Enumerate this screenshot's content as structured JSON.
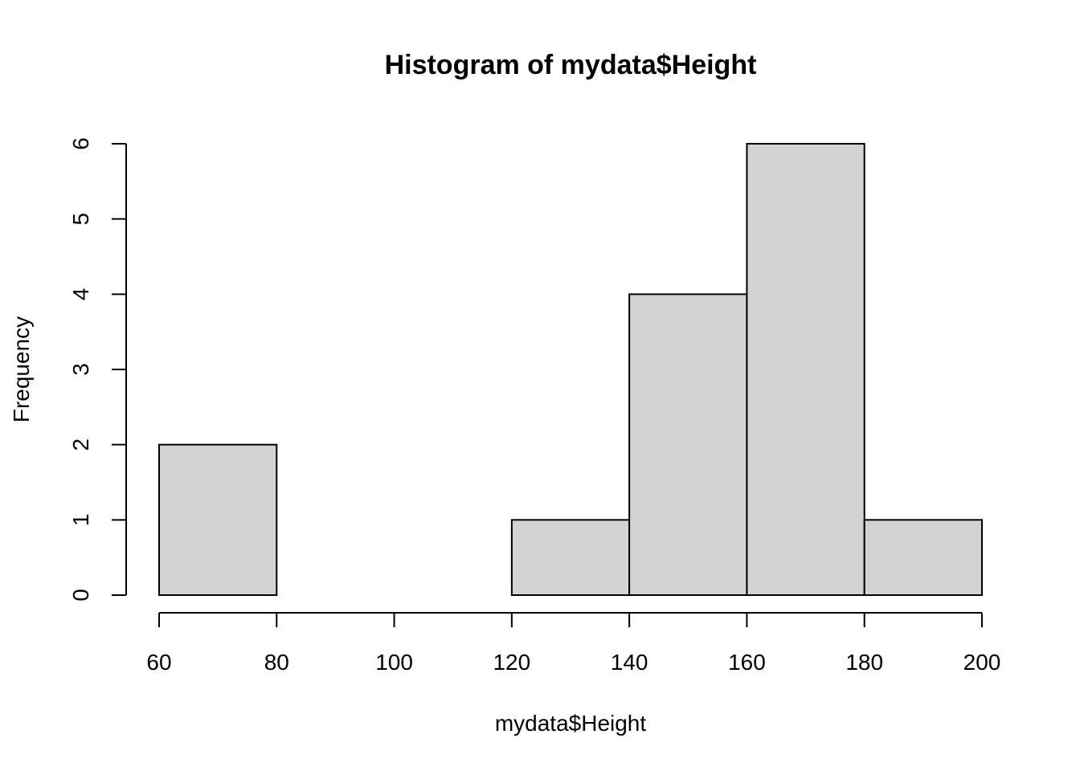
{
  "chart_data": {
    "type": "bar",
    "title": "Histogram of mydata$Height",
    "xlabel": "mydata$Height",
    "ylabel": "Frequency",
    "bins": [
      {
        "start": 60,
        "end": 80,
        "count": 2
      },
      {
        "start": 80,
        "end": 100,
        "count": 0
      },
      {
        "start": 100,
        "end": 120,
        "count": 0
      },
      {
        "start": 120,
        "end": 140,
        "count": 1
      },
      {
        "start": 140,
        "end": 160,
        "count": 4
      },
      {
        "start": 160,
        "end": 180,
        "count": 6
      },
      {
        "start": 180,
        "end": 200,
        "count": 1
      }
    ],
    "xlim": [
      60,
      200
    ],
    "ylim": [
      0,
      6
    ],
    "x_ticks": [
      "60",
      "80",
      "100",
      "120",
      "140",
      "160",
      "180",
      "200"
    ],
    "y_ticks": [
      "0",
      "1",
      "2",
      "3",
      "4",
      "5",
      "6"
    ],
    "bar_fill": "#d3d3d3",
    "bar_stroke": "#000000",
    "grid": false,
    "legend": "none"
  }
}
